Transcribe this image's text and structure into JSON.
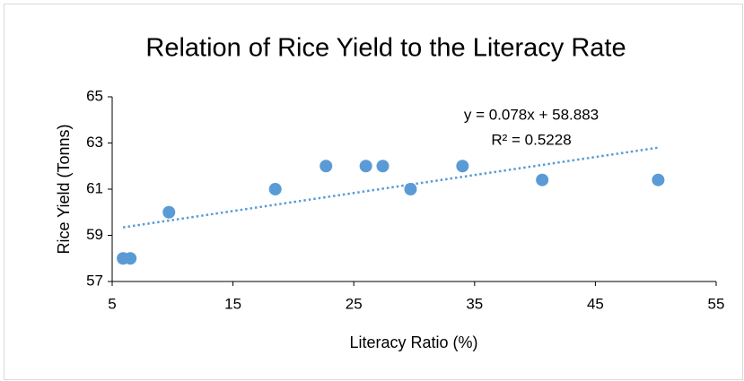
{
  "chart_data": {
    "type": "scatter",
    "title": "Relation of Rice Yield to the Literacy Rate",
    "x_label": "Literacy Ratio (%)",
    "y_label": "Rice Yield (Tonns)",
    "annotations": [
      "y = 0.078x + 58.883",
      "R² = 0.5228"
    ],
    "series": [
      {
        "name": "Rice Yield",
        "color": "#5b9bd5",
        "x": [
          5.9,
          6.5,
          9.7,
          18.5,
          22.7,
          26.0,
          27.4,
          29.7,
          34.0,
          40.6,
          50.2
        ],
        "values": [
          58,
          58,
          60,
          61,
          62,
          62,
          62,
          61,
          62,
          61.4,
          61.4
        ]
      }
    ],
    "trendline": {
      "slope": 0.078,
      "intercept": 58.883,
      "color": "#5b9bd5"
    },
    "xlim": [
      5,
      55
    ],
    "xticks": [
      5,
      15,
      25,
      35,
      45,
      55
    ],
    "ylim": [
      57,
      65
    ],
    "yticks": [
      57,
      59,
      61,
      63,
      65
    ]
  }
}
